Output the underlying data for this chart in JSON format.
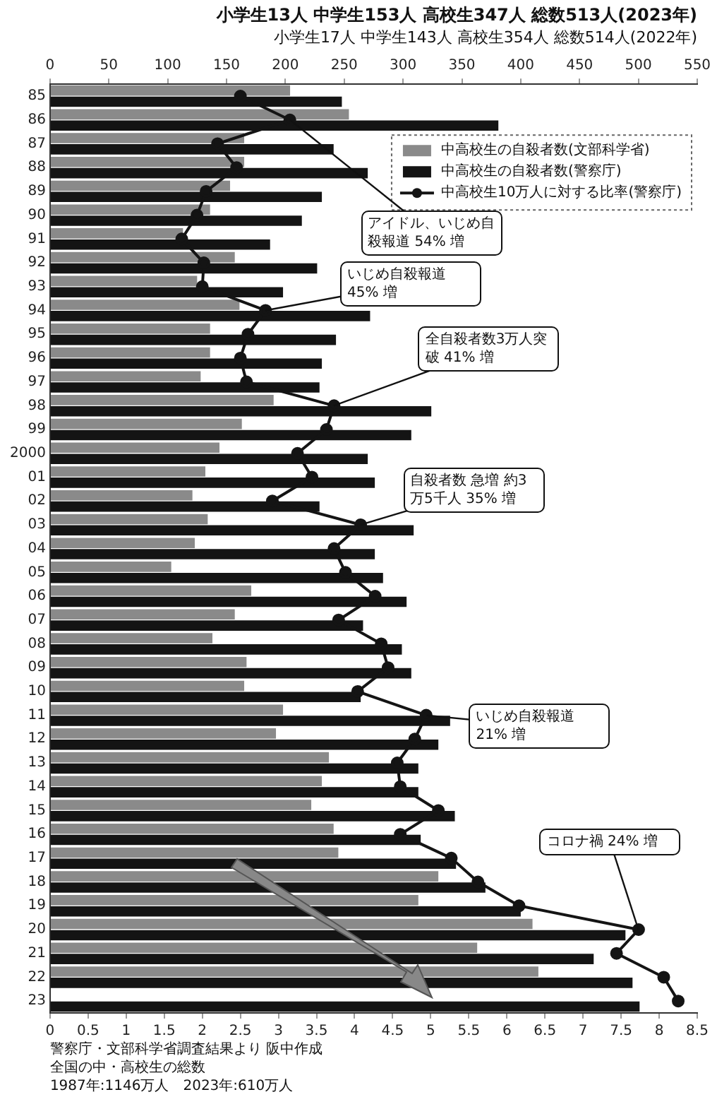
{
  "chart_data": {
    "type": "bar",
    "orientation": "horizontal",
    "title": "小学生13人 中学生153人 高校生347人 総数513人(2023年)",
    "subtitle": "小学生17人 中学生143人 高校生354人 総数514人(2022年)",
    "categories": [
      "85",
      "86",
      "87",
      "88",
      "89",
      "90",
      "91",
      "92",
      "93",
      "94",
      "95",
      "96",
      "97",
      "98",
      "99",
      "2000",
      "01",
      "02",
      "03",
      "04",
      "05",
      "06",
      "07",
      "08",
      "09",
      "10",
      "11",
      "12",
      "13",
      "14",
      "15",
      "16",
      "17",
      "18",
      "19",
      "20",
      "21",
      "22",
      "23"
    ],
    "series": [
      {
        "name": "中高校生の自殺者数(文部科学省)",
        "color": "#8a8a8a",
        "values": [
          204,
          254,
          165,
          165,
          153,
          136,
          113,
          157,
          125,
          161,
          136,
          136,
          128,
          190,
          163,
          144,
          132,
          121,
          134,
          123,
          103,
          171,
          157,
          138,
          167,
          165,
          198,
          192,
          237,
          231,
          222,
          241,
          245,
          330,
          313,
          410,
          363,
          415,
          null
        ]
      },
      {
        "name": "中高校生の自殺者数(警察庁)",
        "color": "#141414",
        "values": [
          248,
          381,
          241,
          270,
          231,
          214,
          187,
          227,
          198,
          272,
          243,
          231,
          229,
          324,
          307,
          270,
          276,
          229,
          309,
          276,
          283,
          303,
          266,
          299,
          307,
          264,
          340,
          330,
          313,
          313,
          344,
          315,
          345,
          370,
          400,
          489,
          462,
          495,
          501
        ]
      },
      {
        "name": "中高校生10万人に対する比率(警察庁)",
        "type": "line",
        "axis": "x2",
        "color": "#141414",
        "values": [
          2.5,
          3.15,
          2.2,
          2.45,
          2.05,
          1.93,
          1.73,
          2.02,
          2.0,
          2.83,
          2.6,
          2.5,
          2.58,
          3.73,
          3.63,
          3.25,
          3.44,
          2.92,
          4.08,
          3.73,
          3.88,
          4.27,
          3.79,
          4.35,
          4.44,
          4.04,
          4.94,
          4.79,
          4.56,
          4.6,
          5.1,
          4.6,
          5.27,
          5.62,
          6.16,
          7.73,
          7.44,
          8.06,
          8.25
        ]
      }
    ],
    "xlim": [
      0,
      550
    ],
    "xticks": [
      0,
      50,
      100,
      150,
      200,
      250,
      300,
      350,
      400,
      450,
      500,
      550
    ],
    "x2lim": [
      0,
      8.5
    ],
    "x2ticks": [
      0,
      0.5,
      1,
      1.5,
      2,
      2.5,
      3,
      3.5,
      4,
      4.5,
      5,
      5.5,
      6,
      6.5,
      7,
      7.5,
      8,
      8.5
    ],
    "annotations": [
      {
        "text": "アイドル、いじめ自殺報道 54% 増",
        "y": "86",
        "x": 204
      },
      {
        "text": "いじめ自殺報道 45% 増",
        "y": "94",
        "x": 183
      },
      {
        "text": "全自殺者数3万人突破 41% 増",
        "y": "98",
        "x": 241
      },
      {
        "text": "自殺者数 急増 約3万5千人 35% 増",
        "y": "03",
        "x": 264
      },
      {
        "text": "いじめ自殺報道 21% 増",
        "y": "11",
        "x": 320
      },
      {
        "text": "コロナ禍 24% 増",
        "y": "20",
        "x": 500
      },
      "警察庁・文部科学省調査結果より 阪中作成",
      "全国の中・高校生の総数",
      "1987年:1146万人　2023年:610万人"
    ],
    "legend": "top right",
    "marker": "circle",
    "grid": false
  }
}
